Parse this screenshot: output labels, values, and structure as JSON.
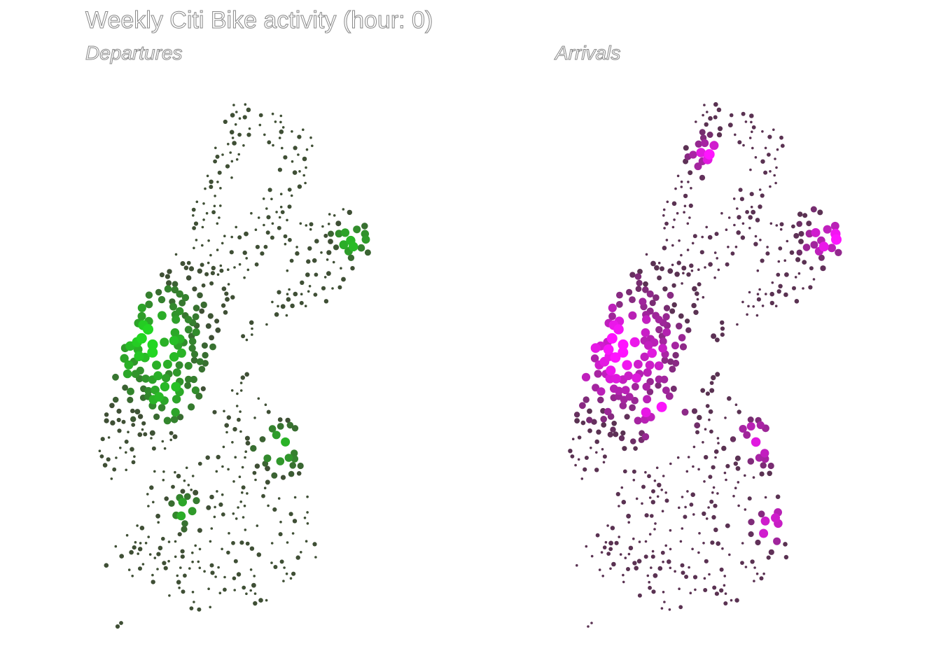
{
  "title": "Weekly Citi Bike activity (hour: 0)",
  "colors": {
    "departures_low": "#3f4f35",
    "departures_high": "#22d622",
    "arrivals_low": "#5a3252",
    "arrivals_high": "#ff14ff"
  },
  "chart_data": [
    {
      "type": "scatter",
      "title": "Departures",
      "description_of_encoding": "station locations; dot size and green intensity scale with departure count",
      "value_range": [
        0,
        1
      ],
      "layer": "departures"
    },
    {
      "type": "scatter",
      "title": "Arrivals",
      "description_of_encoding": "station locations; dot size and magenta intensity scale with arrival count",
      "value_range": [
        0,
        1
      ],
      "layer": "arrivals"
    }
  ]
}
